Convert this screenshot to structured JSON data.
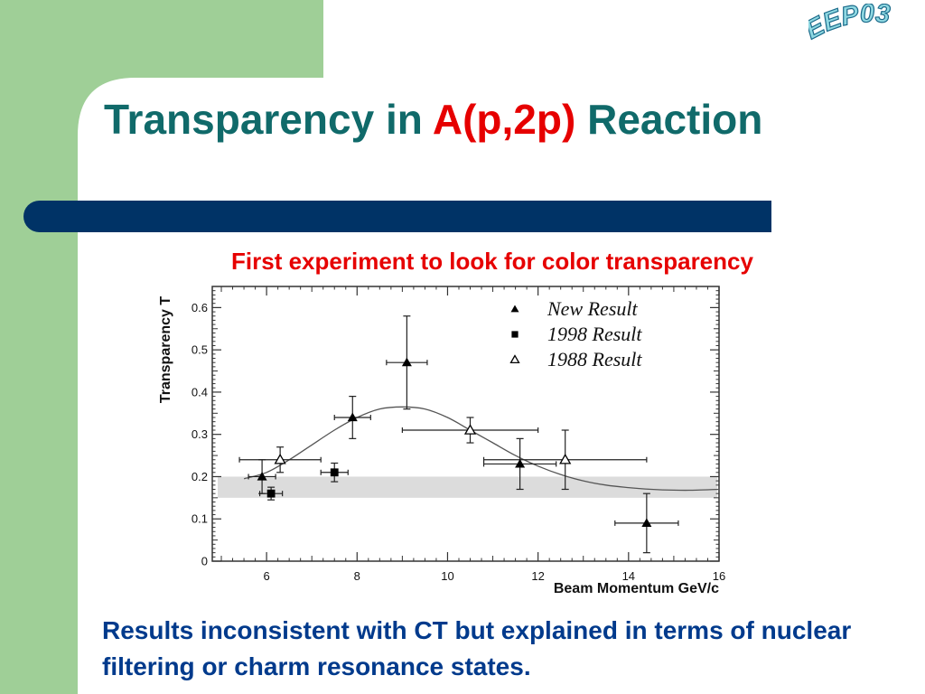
{
  "slide": {
    "logo_text": "EEP03",
    "title_part1": "Transparency in ",
    "title_highlight": "A(p,2p)",
    "title_part2": "  Reaction",
    "subtitle": "First experiment to look for color transparency",
    "footer": "Results inconsistent with CT but explained in terms of nuclear filtering or charm resonance states.",
    "colors": {
      "green_panel": "#9fcf97",
      "title_teal": "#106a6a",
      "accent_red": "#e60000",
      "bar_navy": "#003366",
      "footer_blue": "#003a8c"
    }
  },
  "chart_data": {
    "type": "scatter",
    "xlabel": "Beam Momentum GeV/c",
    "ylabel": "Transparency T",
    "xlim": [
      4.8,
      16
    ],
    "ylim": [
      0,
      0.65
    ],
    "xticks": [
      6,
      8,
      10,
      12,
      14,
      16
    ],
    "yticks": [
      0,
      0.1,
      0.2,
      0.3,
      0.4,
      0.5,
      0.6
    ],
    "ytick_labels": [
      "0",
      "0.1",
      "0.2",
      "0.3",
      "0.4",
      "0.5",
      "0.6"
    ],
    "grid": false,
    "legend_position": "top-right",
    "band": {
      "y_low": 0.15,
      "y_high": 0.2,
      "color": "#dcdcdc"
    },
    "series": [
      {
        "name": "New Result",
        "marker": "filled-triangle",
        "points": [
          {
            "x": 5.9,
            "y": 0.2,
            "xerr": 0.3,
            "yerr": 0.04
          },
          {
            "x": 7.9,
            "y": 0.34,
            "xerr": 0.4,
            "yerr": 0.05
          },
          {
            "x": 9.1,
            "y": 0.47,
            "xerr": 0.45,
            "yerr": 0.11
          },
          {
            "x": 11.6,
            "y": 0.23,
            "xerr": 0.8,
            "yerr": 0.06
          },
          {
            "x": 14.4,
            "y": 0.09,
            "xerr": 0.7,
            "yerr": 0.07
          }
        ]
      },
      {
        "name": "1998 Result",
        "marker": "filled-square",
        "points": [
          {
            "x": 6.1,
            "y": 0.16,
            "xerr": 0.25,
            "yerr": 0.015
          },
          {
            "x": 7.5,
            "y": 0.21,
            "xerr": 0.3,
            "yerr": 0.022
          }
        ]
      },
      {
        "name": "1988 Result",
        "marker": "open-triangle",
        "points": [
          {
            "x": 6.3,
            "y": 0.24,
            "xerr": 0.9,
            "yerr": 0.03
          },
          {
            "x": 10.5,
            "y": 0.31,
            "xerr": 1.5,
            "yerr": 0.03
          },
          {
            "x": 12.6,
            "y": 0.24,
            "xerr": 1.8,
            "yerr": 0.07
          }
        ]
      }
    ],
    "curve": {
      "x": [
        5.5,
        6,
        6.5,
        7,
        7.5,
        8,
        8.5,
        9,
        9.5,
        10,
        10.5,
        11,
        11.5,
        12,
        12.5,
        13,
        13.5,
        14,
        14.5,
        15,
        15.5,
        16
      ],
      "y": [
        0.195,
        0.21,
        0.24,
        0.275,
        0.31,
        0.34,
        0.36,
        0.365,
        0.36,
        0.34,
        0.31,
        0.28,
        0.25,
        0.225,
        0.205,
        0.19,
        0.18,
        0.174,
        0.17,
        0.168,
        0.168,
        0.17
      ]
    }
  }
}
